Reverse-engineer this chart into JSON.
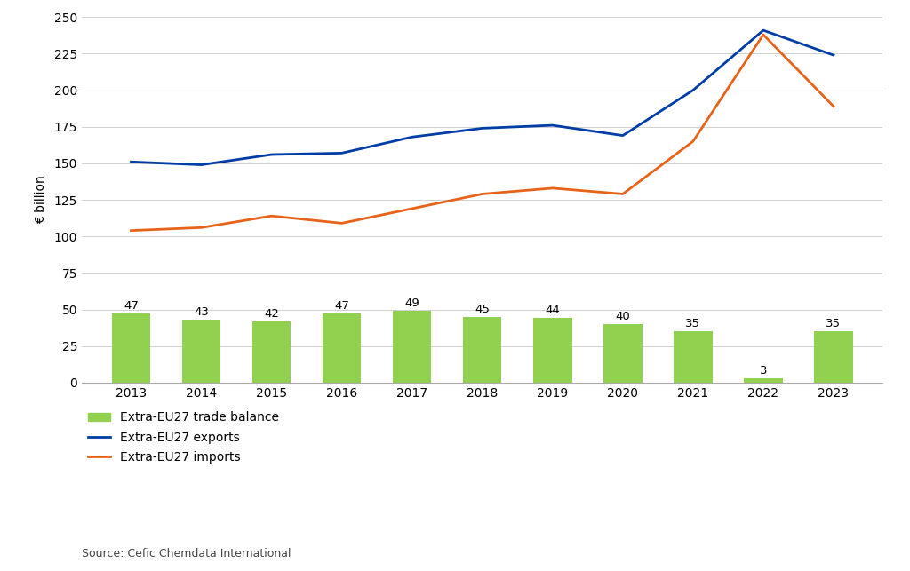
{
  "years": [
    2013,
    2014,
    2015,
    2016,
    2017,
    2018,
    2019,
    2020,
    2021,
    2022,
    2023
  ],
  "exports": [
    151,
    149,
    156,
    157,
    168,
    174,
    176,
    169,
    200,
    241,
    224
  ],
  "imports": [
    104,
    106,
    114,
    109,
    119,
    129,
    133,
    129,
    165,
    238,
    189
  ],
  "trade_balance": [
    47,
    43,
    42,
    47,
    49,
    45,
    44,
    40,
    35,
    3,
    35
  ],
  "bar_color": "#92d050",
  "exports_color": "#003DA5",
  "imports_color": "#E8631A",
  "ylabel": "€ billion",
  "ylim": [
    0,
    250
  ],
  "yticks": [
    0,
    25,
    50,
    75,
    100,
    125,
    150,
    175,
    200,
    225,
    250
  ],
  "legend_labels": [
    "Extra-EU27 trade balance",
    "Extra-EU27 exports",
    "Extra-EU27 imports"
  ],
  "source": "Source: Cefic Chemdata International",
  "background_color": "#ffffff",
  "bar_label_fontsize": 9.5,
  "axis_label_fontsize": 10,
  "tick_fontsize": 10,
  "legend_fontsize": 10,
  "source_fontsize": 9,
  "xlim": [
    2012.3,
    2023.7
  ]
}
